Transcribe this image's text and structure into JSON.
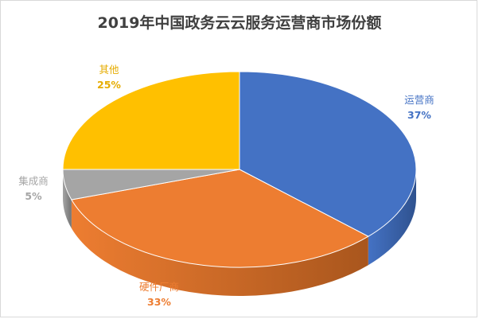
{
  "chart_data": {
    "type": "pie",
    "title": "2019年中国政务云云服务运营商市场份额",
    "slices": [
      {
        "label": "运营商",
        "value": 37,
        "display": "37%",
        "color": "#4472c4",
        "side": "#2f528f"
      },
      {
        "label": "硬件厂商",
        "value": 33,
        "display": "33%",
        "color": "#ed7d31",
        "side": "#a9561d"
      },
      {
        "label": "集成商",
        "value": 5,
        "display": "5%",
        "color": "#a5a5a5",
        "side": "#737373"
      },
      {
        "label": "其他",
        "value": 25,
        "display": "25%",
        "color": "#ffc000",
        "side": "#b38600"
      }
    ],
    "style": "3d-pie",
    "legend": "none",
    "data_labels": "outside"
  }
}
